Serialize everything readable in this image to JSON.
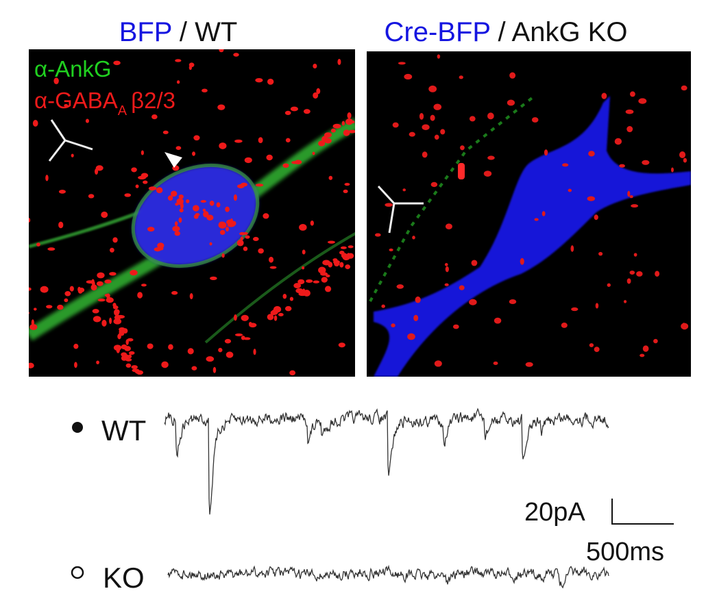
{
  "panels": [
    {
      "title_highlight": "BFP",
      "title_rest": "/ WT",
      "label_1": "α-AnkG",
      "label_2": "α-GABA",
      "label_2_sub": "A",
      "label_2_tail": "β2/3"
    },
    {
      "title_highlight": "Cre-BFP",
      "title_rest": "/ AnkG KO"
    }
  ],
  "traces": {
    "wt_label": "WT",
    "ko_label": "KO",
    "scale_y": "20pA",
    "scale_x": "500ms"
  }
}
